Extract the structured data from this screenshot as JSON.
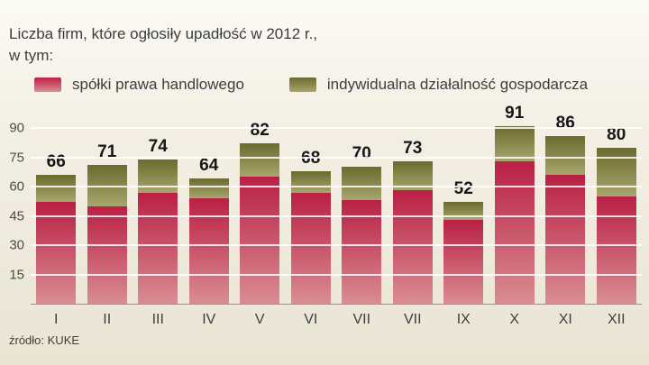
{
  "header": {
    "title_line1": "Liczba firm, które ogłosiły upadłość w 2012 r.,",
    "title_line2": "w tym:"
  },
  "legend": [
    {
      "label": "spółki prawa handlowego",
      "color": "#bb2045"
    },
    {
      "label": "indywidualna działalność gospodarcza",
      "color": "#6b6b2f"
    }
  ],
  "source": "źródło: KUKE",
  "chart_data": {
    "type": "bar",
    "stacked": true,
    "title": "Liczba firm, które ogłosiły upadłość w 2012 r.",
    "categories": [
      "I",
      "II",
      "III",
      "IV",
      "V",
      "VI",
      "VII",
      "VII",
      "IX",
      "X",
      "XI",
      "XII"
    ],
    "totals": [
      66,
      71,
      74,
      64,
      82,
      68,
      70,
      73,
      52,
      91,
      86,
      80
    ],
    "series": [
      {
        "name": "spółki prawa handlowego",
        "values": [
          52,
          50,
          57,
          54,
          65,
          57,
          53,
          58,
          43,
          73,
          66,
          55
        ],
        "color_top": "#bb2045",
        "color_bottom": "#d98d92"
      },
      {
        "name": "indywidualna działalność gospodarcza",
        "values": [
          14,
          21,
          17,
          10,
          17,
          11,
          17,
          15,
          9,
          18,
          20,
          25
        ],
        "color_top": "#6b6b2f",
        "color_bottom": "#a6a66d"
      }
    ],
    "xlabel": "",
    "ylabel": "",
    "ylim": [
      0,
      90
    ],
    "yticks": [
      15,
      30,
      45,
      60,
      75,
      90
    ],
    "grid": true,
    "legend_position": "top"
  }
}
